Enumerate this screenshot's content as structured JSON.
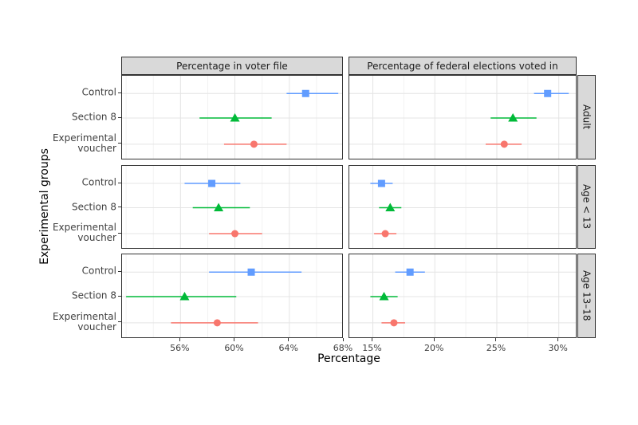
{
  "figure": {
    "background": "#ffffff"
  },
  "chart_data": {
    "type": "scatter",
    "subtype": "faceted-pointrange-dotplot",
    "title": "",
    "xlabel": "Percentage",
    "ylabel": "Experimental groups",
    "legend_position": "none",
    "grid": true,
    "facet_columns": [
      {
        "label": "Percentage in voter file",
        "ticks": [
          56,
          60,
          64,
          68
        ],
        "tick_labels": [
          "56%",
          "60%",
          "64%",
          "68%"
        ],
        "xlim": [
          51.7,
          68.0
        ]
      },
      {
        "label": "Percentage of federal elections voted in",
        "ticks": [
          15,
          20,
          25,
          30
        ],
        "tick_labels": [
          "15%",
          "20%",
          "25%",
          "30%"
        ],
        "xlim": [
          13.1,
          31.5
        ]
      }
    ],
    "facet_rows": [
      "Adult",
      "Age < 13",
      "Age 13–18"
    ],
    "groups": [
      {
        "name": "Control",
        "label_lines": [
          "Control"
        ],
        "marker": "square",
        "color": "#619CFF"
      },
      {
        "name": "Section 8",
        "label_lines": [
          "Section 8"
        ],
        "marker": "triangle",
        "color": "#00BA38"
      },
      {
        "name": "Experimental voucher",
        "label_lines": [
          "Experimental",
          "voucher"
        ],
        "marker": "circle",
        "color": "#F8766D"
      }
    ],
    "panels": [
      {
        "row": "Adult",
        "col": "Percentage in voter file",
        "points": [
          {
            "group": "Control",
            "value": 65.2,
            "lo": 63.8,
            "hi": 67.6
          },
          {
            "group": "Section 8",
            "value": 60.0,
            "lo": 57.4,
            "hi": 62.7
          },
          {
            "group": "Experimental voucher",
            "value": 61.4,
            "lo": 59.2,
            "hi": 63.8
          }
        ]
      },
      {
        "row": "Adult",
        "col": "Percentage of federal elections voted in",
        "points": [
          {
            "group": "Control",
            "value": 29.1,
            "lo": 28.0,
            "hi": 30.8
          },
          {
            "group": "Section 8",
            "value": 26.3,
            "lo": 24.5,
            "hi": 28.2
          },
          {
            "group": "Experimental voucher",
            "value": 25.6,
            "lo": 24.1,
            "hi": 27.0
          }
        ]
      },
      {
        "row": "Age < 13",
        "col": "Percentage in voter file",
        "points": [
          {
            "group": "Control",
            "value": 58.3,
            "lo": 56.3,
            "hi": 60.4
          },
          {
            "group": "Section 8",
            "value": 58.8,
            "lo": 56.9,
            "hi": 61.1
          },
          {
            "group": "Experimental voucher",
            "value": 60.0,
            "lo": 58.1,
            "hi": 62.0
          }
        ]
      },
      {
        "row": "Age < 13",
        "col": "Percentage of federal elections voted in",
        "points": [
          {
            "group": "Control",
            "value": 15.7,
            "lo": 14.8,
            "hi": 16.6
          },
          {
            "group": "Section 8",
            "value": 16.4,
            "lo": 15.5,
            "hi": 17.3
          },
          {
            "group": "Experimental voucher",
            "value": 16.0,
            "lo": 15.1,
            "hi": 16.9
          }
        ]
      },
      {
        "row": "Age 13–18",
        "col": "Percentage in voter file",
        "points": [
          {
            "group": "Control",
            "value": 61.2,
            "lo": 58.1,
            "hi": 64.9
          },
          {
            "group": "Section 8",
            "value": 56.3,
            "lo": 52.0,
            "hi": 60.1
          },
          {
            "group": "Experimental voucher",
            "value": 58.7,
            "lo": 55.3,
            "hi": 61.7
          }
        ]
      },
      {
        "row": "Age 13–18",
        "col": "Percentage of federal elections voted in",
        "points": [
          {
            "group": "Control",
            "value": 18.0,
            "lo": 16.8,
            "hi": 19.2
          },
          {
            "group": "Section 8",
            "value": 15.9,
            "lo": 14.8,
            "hi": 17.0
          },
          {
            "group": "Experimental voucher",
            "value": 16.7,
            "lo": 15.7,
            "hi": 17.6
          }
        ]
      }
    ],
    "style": {
      "strip_bg": "#d9d9d9",
      "panel_border": "#333333",
      "grid_major": "#e4e4e4",
      "grid_minor": "#f2f2f2",
      "tick_text": "#404040",
      "axis_title": "#000000"
    }
  }
}
